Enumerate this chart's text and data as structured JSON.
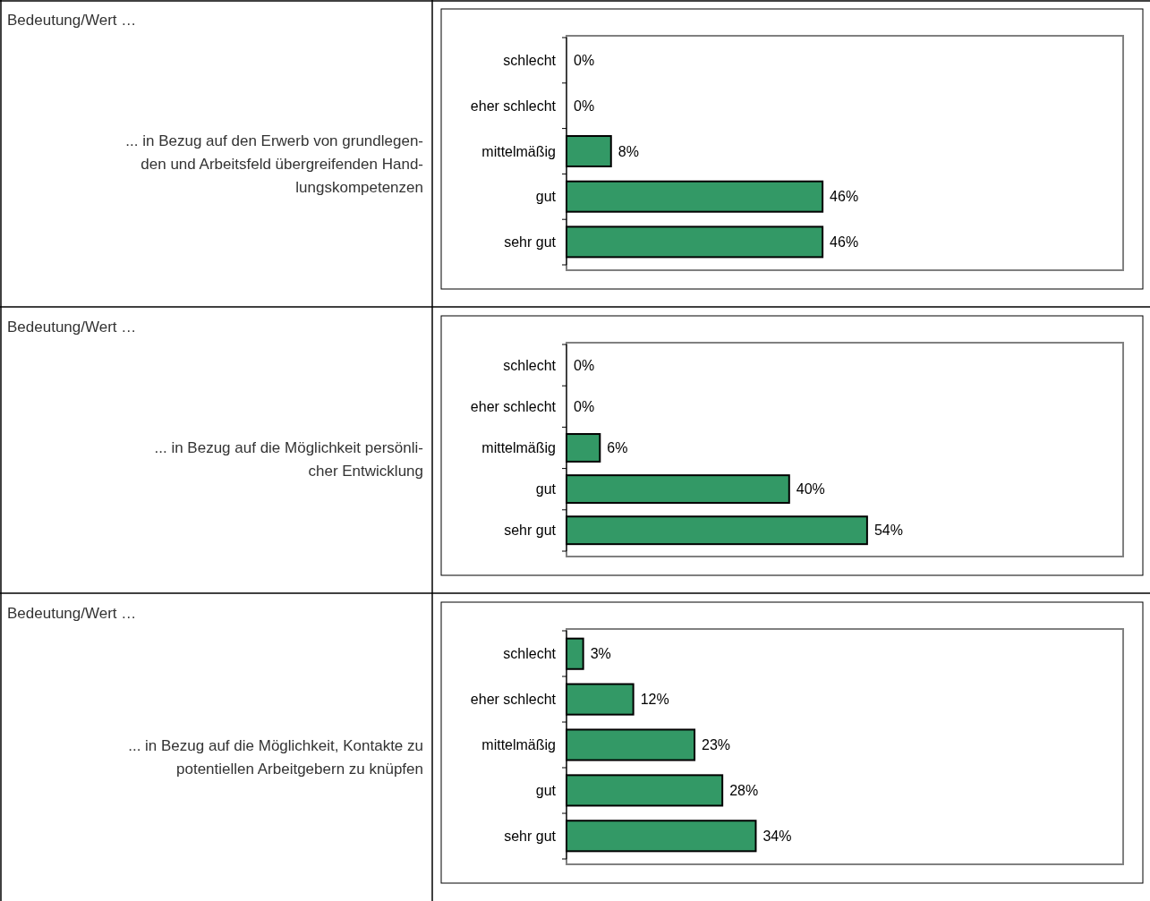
{
  "chart_data": [
    {
      "type": "bar",
      "orientation": "horizontal",
      "title": "Bedeutung/Wert …\n... in Bezug auf den Erwerb von grundlegen-\nden und Arbeitsfeld übergreifenden Hand-\nlungskompetenzen",
      "categories": [
        "schlecht",
        "eher schlecht",
        "mittelmäßig",
        "gut",
        "sehr gut"
      ],
      "values": [
        0,
        0,
        8,
        46,
        46
      ],
      "value_labels": [
        "0%",
        "0%",
        "8%",
        "46%",
        "46%"
      ],
      "color": "#339966",
      "xlim": [
        0,
        100
      ]
    },
    {
      "type": "bar",
      "orientation": "horizontal",
      "title": "Bedeutung/Wert …\n... in Bezug auf die Möglichkeit persönli-\ncher Entwicklung",
      "categories": [
        "schlecht",
        "eher schlecht",
        "mittelmäßig",
        "gut",
        "sehr gut"
      ],
      "values": [
        0,
        0,
        6,
        40,
        54
      ],
      "value_labels": [
        "0%",
        "0%",
        "6%",
        "40%",
        "54%"
      ],
      "color": "#339966",
      "xlim": [
        0,
        100
      ]
    },
    {
      "type": "bar",
      "orientation": "horizontal",
      "title": "Bedeutung/Wert …\n... in Bezug auf die Möglichkeit, Kontakte zu\npotentiellen Arbeitgebern zu knüpfen",
      "categories": [
        "schlecht",
        "eher schlecht",
        "mittelmäßig",
        "gut",
        "sehr gut"
      ],
      "values": [
        3,
        12,
        23,
        28,
        34
      ],
      "value_labels": [
        "3%",
        "12%",
        "23%",
        "28%",
        "34%"
      ],
      "color": "#339966",
      "xlim": [
        0,
        100
      ]
    }
  ]
}
